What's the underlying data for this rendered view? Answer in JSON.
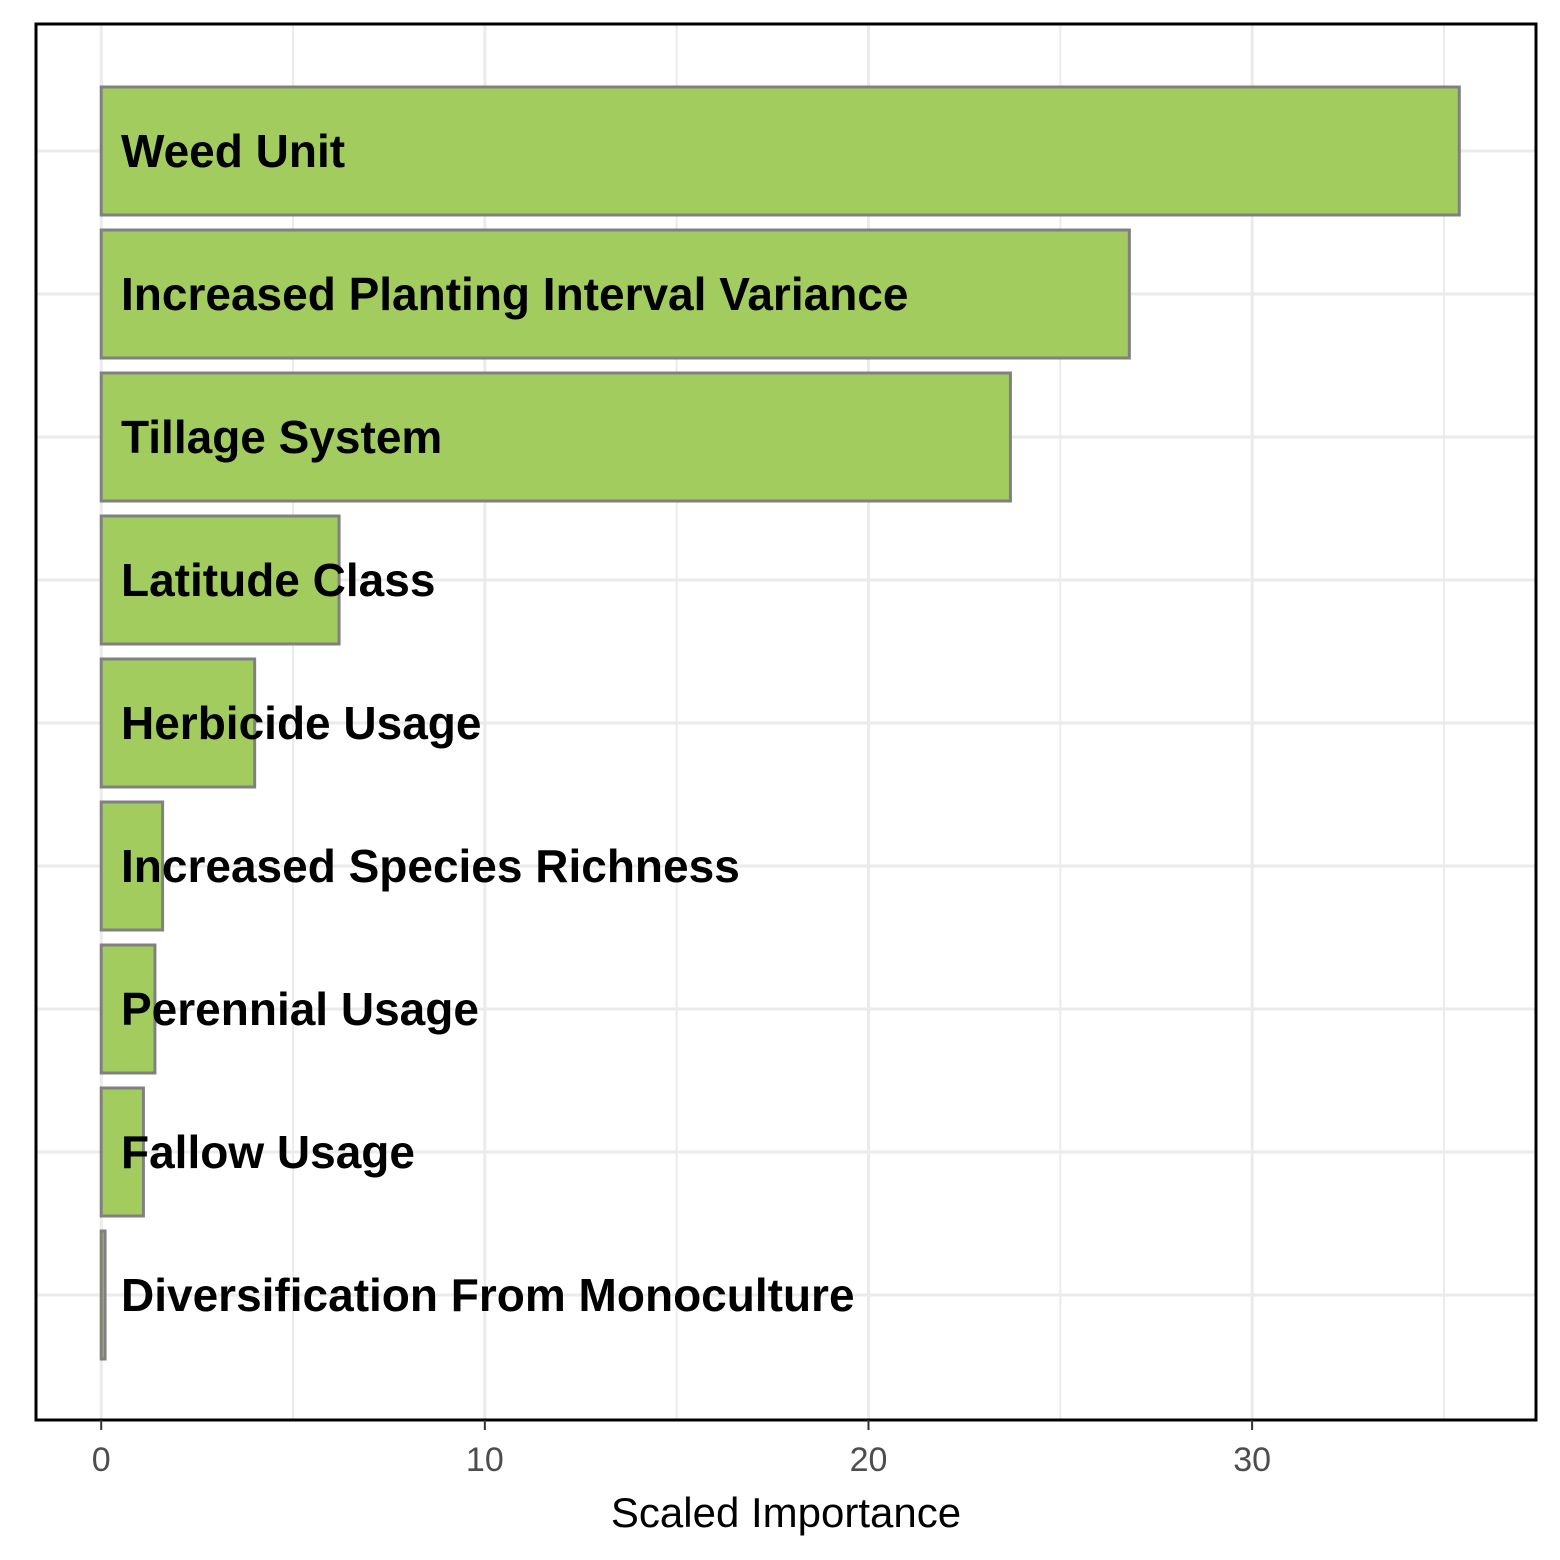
{
  "chart_data": {
    "type": "bar",
    "orientation": "horizontal",
    "categories": [
      "Weed Unit",
      "Increased Planting Interval Variance",
      "Tillage System",
      "Latitude Class",
      "Herbicide Usage",
      "Increased Species Richness",
      "Perennial Usage",
      "Fallow Usage",
      "Diversification From Monoculture"
    ],
    "values": [
      35.4,
      26.8,
      23.7,
      6.2,
      4.0,
      1.6,
      1.4,
      1.1,
      0.1
    ],
    "title": "",
    "xlabel": "Scaled Importance",
    "ylabel": "",
    "xlim": [
      -1.7,
      37.4
    ],
    "xticks": [
      0,
      10,
      20,
      30
    ],
    "grid": true,
    "legend": "none",
    "colors": {
      "bar_fill": "#a3cc5f",
      "bar_stroke": "#808080",
      "grid": "#ebebeb",
      "panel_border": "#000000"
    }
  }
}
